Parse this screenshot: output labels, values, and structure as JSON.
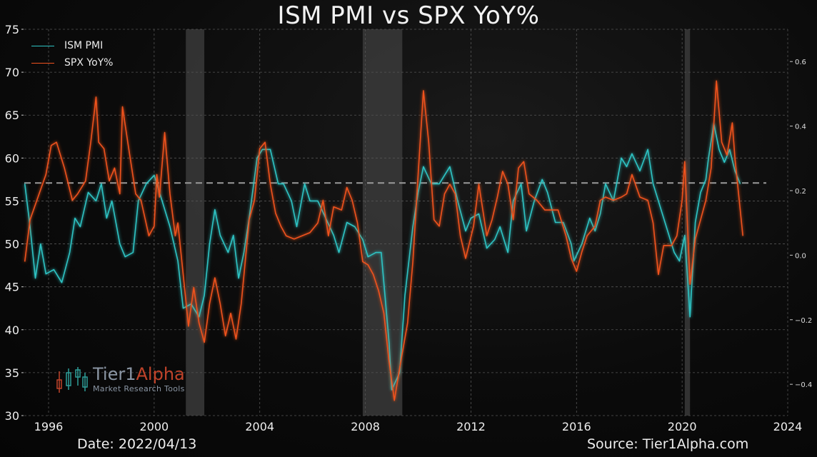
{
  "title": "ISM PMI vs SPX YoY%",
  "footer": {
    "date": "Date: 2022/04/13",
    "source": "Source: Tier1Alpha.com"
  },
  "logo": {
    "name_part1": "Tier1",
    "name_part2": "Alpha",
    "tagline": "Market  Research Tools"
  },
  "colors": {
    "pmi": "#2ec4c4",
    "spx": "#f0521e",
    "recession": "#3a3a3a",
    "reference": "#9a9a9a",
    "grid": "#555555"
  },
  "chart_data": {
    "type": "line",
    "title": "ISM PMI vs SPX YoY%",
    "xlabel": "",
    "ylabel": "",
    "xlim": [
      1995.08,
      2024.0
    ],
    "ylim": [
      30,
      75
    ],
    "y2lim": [
      -0.497,
      0.7
    ],
    "grid": true,
    "legend": "top-left",
    "x_ticks": [
      1996,
      2000,
      2004,
      2008,
      2012,
      2016,
      2020,
      2024
    ],
    "x_tick_labels": [
      "1996",
      "2000",
      "2004",
      "2008",
      "2012",
      "2016",
      "2020",
      "2024"
    ],
    "y_ticks": [
      30,
      35,
      40,
      45,
      50,
      55,
      60,
      65,
      70,
      75
    ],
    "y_tick_labels": [
      "30",
      "35",
      "40",
      "45",
      "50",
      "55",
      "60",
      "65",
      "70",
      "75"
    ],
    "y2_ticks": [
      -0.4,
      -0.2,
      0.0,
      0.2,
      0.4,
      0.6
    ],
    "y2_tick_labels": [
      "−0.4",
      "−0.2",
      "0.0",
      "0.2",
      "0.4",
      "0.6"
    ],
    "reference_line": {
      "axis": "left",
      "value": 57.1
    },
    "recessions": [
      [
        2001.2,
        2001.9
      ],
      [
        2007.9,
        2009.4
      ],
      [
        2020.1,
        2020.3
      ]
    ],
    "series": [
      {
        "name": "ISM PMI",
        "axis": "left",
        "x": [
          1995.1,
          1995.3,
          1995.5,
          1995.7,
          1995.9,
          1996.2,
          1996.5,
          1996.8,
          1997.0,
          1997.2,
          1997.5,
          1997.8,
          1998.0,
          1998.2,
          1998.4,
          1998.7,
          1998.9,
          1999.2,
          1999.4,
          1999.7,
          2000.0,
          2000.3,
          2000.6,
          2000.9,
          2001.1,
          2001.4,
          2001.7,
          2001.9,
          2002.1,
          2002.3,
          2002.5,
          2002.8,
          2003.0,
          2003.2,
          2003.4,
          2003.6,
          2003.9,
          2004.1,
          2004.4,
          2004.7,
          2004.9,
          2005.2,
          2005.4,
          2005.7,
          2005.9,
          2006.2,
          2006.5,
          2006.8,
          2007.0,
          2007.3,
          2007.6,
          2007.9,
          2008.1,
          2008.4,
          2008.6,
          2008.9,
          2009.0,
          2009.3,
          2009.5,
          2009.8,
          2010.0,
          2010.2,
          2010.5,
          2010.8,
          2011.0,
          2011.2,
          2011.5,
          2011.8,
          2012.0,
          2012.3,
          2012.6,
          2012.9,
          2013.1,
          2013.4,
          2013.6,
          2013.9,
          2014.1,
          2014.4,
          2014.7,
          2014.9,
          2015.2,
          2015.5,
          2015.8,
          2015.9,
          2016.2,
          2016.5,
          2016.7,
          2016.9,
          2017.1,
          2017.4,
          2017.7,
          2017.9,
          2018.1,
          2018.4,
          2018.7,
          2018.9,
          2019.1,
          2019.4,
          2019.7,
          2019.9,
          2020.1,
          2020.3,
          2020.5,
          2020.7,
          2020.9,
          2021.0,
          2021.2,
          2021.4,
          2021.6,
          2021.8,
          2022.0,
          2022.2
        ],
        "values": [
          57,
          52,
          46,
          50,
          46.5,
          47,
          45.5,
          49,
          53,
          52,
          56,
          55,
          57,
          53,
          55,
          50,
          48.5,
          49,
          55,
          57,
          58,
          55,
          52,
          48,
          42.5,
          43,
          41.5,
          44,
          50,
          54,
          51,
          49,
          51,
          46,
          49,
          53,
          60,
          61,
          61,
          57,
          57,
          55,
          52,
          57,
          55,
          55,
          53,
          51,
          49,
          52.5,
          52,
          50.5,
          48.5,
          49,
          49,
          38.5,
          33,
          35,
          44,
          52,
          56,
          59,
          57,
          57,
          58,
          59,
          55,
          51.5,
          53,
          53.5,
          49.5,
          50.5,
          52,
          49,
          55,
          57,
          51.5,
          55,
          57.5,
          56,
          52.5,
          52.5,
          50,
          48,
          50,
          53,
          51.5,
          53.5,
          57,
          55,
          60,
          59,
          60.5,
          58.5,
          61,
          57,
          55,
          52,
          49,
          48,
          51,
          41.5,
          52.5,
          56,
          57.5,
          60,
          64,
          61,
          59.5,
          61,
          58.5,
          57
        ]
      },
      {
        "name": "SPX YoY%",
        "axis": "right",
        "x": [
          1995.1,
          1995.3,
          1995.6,
          1995.9,
          1996.1,
          1996.3,
          1996.6,
          1996.9,
          1997.1,
          1997.4,
          1997.6,
          1997.8,
          1997.9,
          1998.1,
          1998.3,
          1998.5,
          1998.7,
          1998.8,
          1999.0,
          1999.3,
          1999.5,
          1999.8,
          2000.0,
          2000.1,
          2000.2,
          2000.4,
          2000.6,
          2000.8,
          2000.9,
          2001.1,
          2001.3,
          2001.5,
          2001.7,
          2001.9,
          2002.1,
          2002.3,
          2002.5,
          2002.7,
          2002.9,
          2003.1,
          2003.3,
          2003.6,
          2003.8,
          2004.0,
          2004.2,
          2004.4,
          2004.6,
          2004.8,
          2005.0,
          2005.3,
          2005.6,
          2005.9,
          2006.2,
          2006.4,
          2006.6,
          2006.8,
          2007.1,
          2007.3,
          2007.5,
          2007.7,
          2007.9,
          2008.1,
          2008.3,
          2008.5,
          2008.7,
          2008.9,
          2009.1,
          2009.3,
          2009.6,
          2009.8,
          2010.0,
          2010.2,
          2010.4,
          2010.6,
          2010.8,
          2011.0,
          2011.2,
          2011.4,
          2011.6,
          2011.8,
          2012.1,
          2012.3,
          2012.6,
          2012.8,
          2013.0,
          2013.2,
          2013.4,
          2013.6,
          2013.8,
          2014.0,
          2014.2,
          2014.5,
          2014.8,
          2015.0,
          2015.3,
          2015.6,
          2015.8,
          2016.0,
          2016.2,
          2016.4,
          2016.7,
          2016.9,
          2017.1,
          2017.4,
          2017.7,
          2017.9,
          2018.1,
          2018.4,
          2018.7,
          2018.9,
          2019.1,
          2019.3,
          2019.6,
          2019.8,
          2020.0,
          2020.1,
          2020.3,
          2020.5,
          2020.7,
          2020.9,
          2021.1,
          2021.3,
          2021.5,
          2021.7,
          2021.9,
          2022.0,
          2022.1,
          2022.2,
          2022.3
        ],
        "values": [
          -0.02,
          0.11,
          0.18,
          0.25,
          0.34,
          0.35,
          0.27,
          0.17,
          0.19,
          0.23,
          0.35,
          0.49,
          0.35,
          0.33,
          0.23,
          0.27,
          0.19,
          0.46,
          0.35,
          0.19,
          0.17,
          0.06,
          0.09,
          0.25,
          0.18,
          0.38,
          0.19,
          0.06,
          0.1,
          -0.06,
          -0.22,
          -0.1,
          -0.21,
          -0.27,
          -0.15,
          -0.07,
          -0.15,
          -0.25,
          -0.18,
          -0.26,
          -0.15,
          0.11,
          0.17,
          0.33,
          0.35,
          0.22,
          0.13,
          0.09,
          0.06,
          0.05,
          0.06,
          0.07,
          0.1,
          0.17,
          0.06,
          0.15,
          0.14,
          0.21,
          0.17,
          0.1,
          -0.02,
          -0.03,
          -0.06,
          -0.11,
          -0.18,
          -0.33,
          -0.45,
          -0.35,
          -0.21,
          -0.02,
          0.25,
          0.51,
          0.35,
          0.11,
          0.09,
          0.19,
          0.22,
          0.19,
          0.06,
          -0.01,
          0.09,
          0.22,
          0.06,
          0.11,
          0.18,
          0.26,
          0.22,
          0.11,
          0.27,
          0.29,
          0.19,
          0.17,
          0.14,
          0.14,
          0.14,
          0.06,
          -0.01,
          -0.05,
          0.01,
          0.06,
          0.09,
          0.17,
          0.18,
          0.17,
          0.18,
          0.19,
          0.25,
          0.18,
          0.17,
          0.1,
          -0.06,
          0.03,
          0.03,
          0.06,
          0.17,
          0.29,
          -0.09,
          0.05,
          0.11,
          0.17,
          0.27,
          0.54,
          0.35,
          0.31,
          0.41,
          0.3,
          0.22,
          0.14,
          0.06
        ]
      }
    ]
  }
}
